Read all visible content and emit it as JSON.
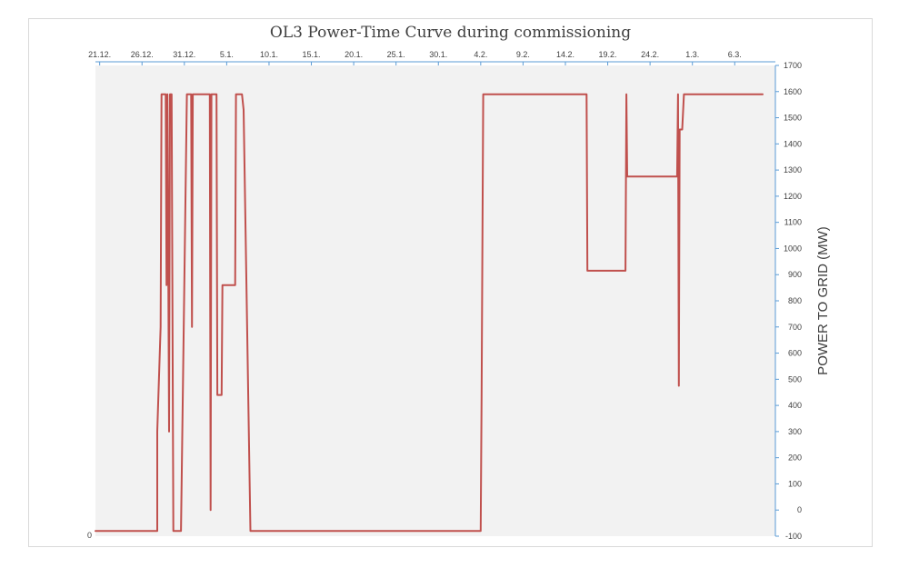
{
  "chart_data": {
    "type": "line",
    "title": "OL3 Power-Time Curve during commissioning",
    "xlabel": "",
    "ylabel": "POWER TO GRID (MW)",
    "x_unit": "days from 21.12.",
    "xlim": [
      -0.5,
      79.8
    ],
    "ylim": [
      -100,
      1700
    ],
    "y_ticks": [
      -100,
      0,
      100,
      200,
      300,
      400,
      500,
      600,
      700,
      800,
      900,
      1000,
      1100,
      1200,
      1300,
      1400,
      1500,
      1600,
      1700
    ],
    "x_ticks": [
      {
        "label": "21.12.",
        "x": 0
      },
      {
        "label": "26.12.",
        "x": 5
      },
      {
        "label": "31.12.",
        "x": 10
      },
      {
        "label": "5.1.",
        "x": 15
      },
      {
        "label": "10.1.",
        "x": 20
      },
      {
        "label": "15.1.",
        "x": 25
      },
      {
        "label": "20.1.",
        "x": 30
      },
      {
        "label": "25.1.",
        "x": 35
      },
      {
        "label": "30.1.",
        "x": 40
      },
      {
        "label": "4.2.",
        "x": 45
      },
      {
        "label": "9.2.",
        "x": 50
      },
      {
        "label": "14.2.",
        "x": 55
      },
      {
        "label": "19.2.",
        "x": 60
      },
      {
        "label": "24.2.",
        "x": 65
      },
      {
        "label": "1.3.",
        "x": 70
      },
      {
        "label": "6.3.",
        "x": 75
      }
    ],
    "corner_label": "0",
    "grid": false,
    "legend": "none",
    "series": [
      {
        "color": "#c0504d",
        "points": [
          [
            -0.5,
            -80
          ],
          [
            6.8,
            -80
          ],
          [
            6.8,
            300
          ],
          [
            7.2,
            700
          ],
          [
            7.3,
            1590
          ],
          [
            7.8,
            1590
          ],
          [
            7.9,
            860
          ],
          [
            8.0,
            1590
          ],
          [
            8.2,
            300
          ],
          [
            8.3,
            1590
          ],
          [
            8.5,
            1590
          ],
          [
            8.7,
            -80
          ],
          [
            9.6,
            -80
          ],
          [
            10.3,
            1590
          ],
          [
            10.8,
            1590
          ],
          [
            10.9,
            700
          ],
          [
            11.0,
            1590
          ],
          [
            13.0,
            1590
          ],
          [
            13.1,
            0
          ],
          [
            13.2,
            1590
          ],
          [
            13.8,
            1590
          ],
          [
            13.9,
            440
          ],
          [
            14.4,
            440
          ],
          [
            14.5,
            860
          ],
          [
            16.0,
            860
          ],
          [
            16.1,
            1590
          ],
          [
            16.8,
            1590
          ],
          [
            17.0,
            1530
          ],
          [
            17.8,
            -80
          ],
          [
            45.0,
            -80
          ],
          [
            45.1,
            430
          ],
          [
            45.3,
            1590
          ],
          [
            57.5,
            1590
          ],
          [
            57.6,
            915
          ],
          [
            62.1,
            915
          ],
          [
            62.2,
            1590
          ],
          [
            62.3,
            1275
          ],
          [
            68.2,
            1275
          ],
          [
            68.3,
            1590
          ],
          [
            68.4,
            475
          ],
          [
            68.5,
            1455
          ],
          [
            68.8,
            1455
          ],
          [
            69.0,
            1590
          ],
          [
            78.3,
            1590
          ]
        ]
      }
    ]
  }
}
